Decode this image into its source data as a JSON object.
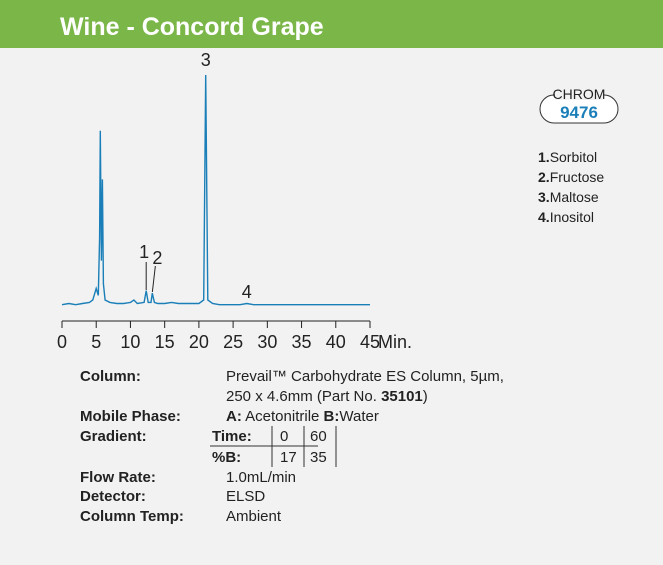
{
  "chart_data": {
    "type": "line",
    "title": "Wine - Concord Grape",
    "x": [
      0,
      1,
      2,
      3,
      4,
      4.5,
      5,
      5.3,
      5.5,
      5.6,
      5.75,
      5.9,
      6.05,
      6.3,
      7,
      8,
      9,
      10,
      10.5,
      11,
      12,
      12.3,
      12.6,
      13,
      13.2,
      13.5,
      14,
      15,
      16,
      17,
      18,
      19,
      20,
      20.7,
      21,
      21.3,
      22,
      23,
      25,
      26,
      27,
      28,
      30,
      35,
      40,
      45
    ],
    "values": [
      1,
      1.5,
      1,
      1.5,
      2,
      3,
      8,
      5,
      30,
      76,
      20,
      55,
      10,
      3,
      2,
      1.5,
      1.5,
      2,
      3,
      1.5,
      2,
      7,
      2,
      2,
      6,
      2,
      1.5,
      1.5,
      2,
      1.5,
      1.5,
      1.5,
      1.5,
      3,
      100,
      3,
      1.5,
      1,
      1,
      1,
      1.5,
      1,
      1,
      1,
      1,
      1
    ],
    "color": "#1a7fb8",
    "xlim": [
      0,
      45
    ],
    "xticks": [
      0,
      5,
      10,
      15,
      20,
      25,
      30,
      35,
      40,
      45
    ],
    "x_unit": "Min.",
    "ylim": [
      0,
      100
    ],
    "annotations": [
      {
        "label": "1",
        "x": 12.3
      },
      {
        "label": "2",
        "x": 13.2
      },
      {
        "label": "3",
        "x": 21
      },
      {
        "label": "4",
        "x": 27
      }
    ]
  },
  "badge": {
    "top": "CHROM",
    "number": "9476"
  },
  "compounds": [
    {
      "number": "1.",
      "name": "Sorbitol"
    },
    {
      "number": "2.",
      "name": "Fructose"
    },
    {
      "number": "3.",
      "name": "Maltose"
    },
    {
      "number": "4.",
      "name": "Inositol"
    }
  ],
  "conditions": {
    "column": {
      "label": "Column:",
      "line1": "Prevail™ Carbohydrate ES Column, 5µm,",
      "line2a": "250 x 4.6mm (Part No. ",
      "line2b": "35101",
      "line2c": ")"
    },
    "mobile_phase": {
      "label": "Mobile Phase:",
      "a": "A:",
      "a_text": " Acetonitrile ",
      "b": "B:",
      "b_text": "Water"
    },
    "gradient": {
      "label": "Gradient:",
      "time_label": "Time:",
      "times": [
        "0",
        "60"
      ],
      "b_label": "%B:",
      "b_values": [
        "17",
        "35"
      ]
    },
    "flow_rate": {
      "label": "Flow Rate:",
      "value": "1.0mL/min"
    },
    "detector": {
      "label": "Detector:",
      "value": "ELSD"
    },
    "column_temp": {
      "label": "Column Temp:",
      "value": "Ambient"
    }
  }
}
